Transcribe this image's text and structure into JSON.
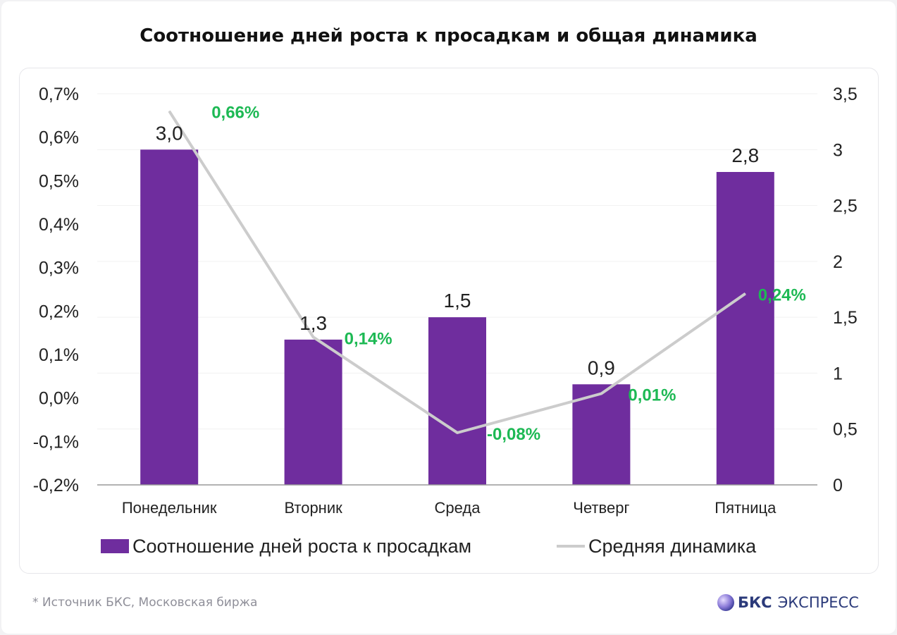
{
  "title": "Соотношение дней роста к просадкам и общая динамика",
  "footnote": "*  Источник БКС, Московская биржа",
  "brand": {
    "part1": "БКС",
    "part2": "ЭКСПРЕСС",
    "icon": "bcs-logo-icon"
  },
  "colors": {
    "bar": "#6f2d9e",
    "line": "#cccccc",
    "pct_label": "#1db954",
    "axis": "#222222",
    "grid": "#f1f1f1"
  },
  "chart_data": {
    "type": "bar",
    "categories": [
      "Понедельник",
      "Вторник",
      "Среда",
      "Четверг",
      "Пятница"
    ],
    "series": [
      {
        "name": "Соотношение дней роста к просадкам",
        "type": "bar",
        "axis": "right",
        "values": [
          3.0,
          1.3,
          1.5,
          0.9,
          2.8
        ],
        "labels": [
          "3,0",
          "1,3",
          "1,5",
          "0,9",
          "2,8"
        ]
      },
      {
        "name": "Средняя динамика",
        "type": "line",
        "axis": "left",
        "values": [
          0.66,
          0.14,
          -0.08,
          0.01,
          0.24
        ],
        "labels": [
          "0,66%",
          "0,14%",
          "-0,08%",
          "0,01%",
          "0,24%"
        ]
      }
    ],
    "y_left": {
      "min": -0.2,
      "max": 0.7,
      "ticks": [
        "0,7%",
        "0,6%",
        "0,5%",
        "0,4%",
        "0,3%",
        "0,2%",
        "0,1%",
        "0,0%",
        "-0,1%",
        "-0,2%"
      ]
    },
    "y_right": {
      "min": 0,
      "max": 3.5,
      "ticks": [
        "3,5",
        "3",
        "2,5",
        "2",
        "1,5",
        "1",
        "0,5",
        "0"
      ]
    },
    "legend": {
      "position": "bottom",
      "items": [
        "Соотношение дней роста к просадкам",
        "Средняя динамика"
      ]
    },
    "grid": true
  }
}
